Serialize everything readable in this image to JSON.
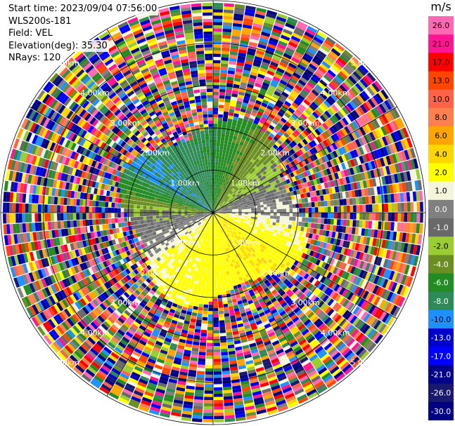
{
  "header": {
    "start_time": "Start time: 2023/09/04 07:56:00",
    "instrument": "WLS200s-181",
    "field": "Field: VEL",
    "elevation": "Elevation(deg): 35.30",
    "nrays": "NRays: 120"
  },
  "colorbar": {
    "unit": "m/s",
    "ticks": [
      "26.0",
      "21.0",
      "17.0",
      "13.0",
      "10.0",
      "8.0",
      "6.0",
      "4.0",
      "2.0",
      "1.0",
      "0.0",
      "-1.0",
      "-2.0",
      "-4.0",
      "-6.0",
      "-8.0",
      "-10.0",
      "-13.0",
      "-17.0",
      "-21.0",
      "-26.0",
      "-30.0"
    ],
    "colors": [
      "#ff69b4",
      "#ff1493",
      "#ff0000",
      "#ff4500",
      "#ff6347",
      "#ff7f50",
      "#ffa500",
      "#ffd700",
      "#ffff00",
      "#f5f5dc",
      "#808080",
      "#696969",
      "#9acd32",
      "#6b8e23",
      "#228b22",
      "#2e8b57",
      "#1e90ff",
      "#0000cd",
      "#0000ff",
      "#00008b",
      "#191970",
      "#000080"
    ]
  },
  "chart_data": {
    "type": "ppi",
    "title": "",
    "range_rings_km": [
      1.0,
      2.0,
      3.0,
      4.0,
      5.0
    ],
    "ring_labels": [
      "1.00km",
      "2.00km",
      "3.00km",
      "4.00km",
      "5.00km"
    ],
    "max_range_km": 5.0,
    "n_rays": 120,
    "colorbar_unit": "m/s",
    "colorbar_levels": [
      -30,
      -26,
      -21,
      -17,
      -13,
      -10,
      -8,
      -6,
      -4,
      -2,
      -1,
      0,
      1,
      2,
      4,
      6,
      8,
      10,
      13,
      17,
      21,
      26
    ],
    "velocity_pattern": {
      "west_northwest_inner": -8,
      "north_inner": -6,
      "northeast_inner": -2,
      "east_inner": 1,
      "southeast_inner": 4,
      "south_inner": 3,
      "southwest_inner": 2,
      "west_inner": -1,
      "valid_data_limit_km": 2.1,
      "outer_region": "noise"
    }
  }
}
